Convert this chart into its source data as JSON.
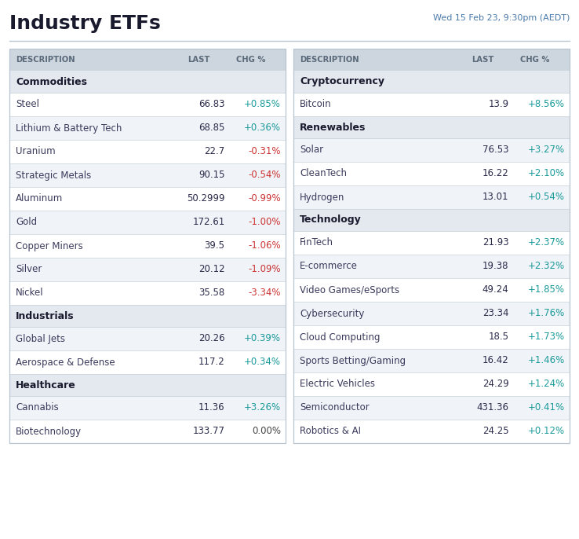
{
  "title": "Industry ETFs",
  "datetime": "Wed 15 Feb 23, 9:30pm (AEDT)",
  "bg_color": "#ffffff",
  "header_bg": "#cdd5de",
  "category_bg": "#e4e9ef",
  "row_bg_odd": "#ffffff",
  "row_bg_even": "#f0f3f7",
  "header_text_color": "#5a6a7a",
  "category_text_color": "#1a1a2e",
  "desc_text_color": "#3a3a5c",
  "last_text_color": "#2a2a4a",
  "positive_color": "#1a9a9a",
  "negative_color": "#cc3333",
  "neutral_color": "#444444",
  "title_color": "#1a1a2e",
  "datetime_color": "#4a7aaa",
  "border_color": "#b8c4cf",
  "separator_color": "#c8d2dc",
  "left_table": {
    "categories": [
      {
        "name": "Commodities",
        "rows": [
          {
            "desc": "Steel",
            "last": "66.83",
            "chg": "+0.85%",
            "positive": true
          },
          {
            "desc": "Lithium & Battery Tech",
            "last": "68.85",
            "chg": "+0.36%",
            "positive": true
          },
          {
            "desc": "Uranium",
            "last": "22.7",
            "chg": "-0.31%",
            "positive": false
          },
          {
            "desc": "Strategic Metals",
            "last": "90.15",
            "chg": "-0.54%",
            "positive": false
          },
          {
            "desc": "Aluminum",
            "last": "50.2999",
            "chg": "-0.99%",
            "positive": false
          },
          {
            "desc": "Gold",
            "last": "172.61",
            "chg": "-1.00%",
            "positive": false
          },
          {
            "desc": "Copper Miners",
            "last": "39.5",
            "chg": "-1.06%",
            "positive": false
          },
          {
            "desc": "Silver",
            "last": "20.12",
            "chg": "-1.09%",
            "positive": false
          },
          {
            "desc": "Nickel",
            "last": "35.58",
            "chg": "-3.34%",
            "positive": false
          }
        ]
      },
      {
        "name": "Industrials",
        "rows": [
          {
            "desc": "Global Jets",
            "last": "20.26",
            "chg": "+0.39%",
            "positive": true
          },
          {
            "desc": "Aerospace & Defense",
            "last": "117.2",
            "chg": "+0.34%",
            "positive": true
          }
        ]
      },
      {
        "name": "Healthcare",
        "rows": [
          {
            "desc": "Cannabis",
            "last": "11.36",
            "chg": "+3.26%",
            "positive": true
          },
          {
            "desc": "Biotechnology",
            "last": "133.77",
            "chg": "0.00%",
            "positive": null
          }
        ]
      }
    ]
  },
  "right_table": {
    "categories": [
      {
        "name": "Cryptocurrency",
        "rows": [
          {
            "desc": "Bitcoin",
            "last": "13.9",
            "chg": "+8.56%",
            "positive": true
          }
        ]
      },
      {
        "name": "Renewables",
        "rows": [
          {
            "desc": "Solar",
            "last": "76.53",
            "chg": "+3.27%",
            "positive": true
          },
          {
            "desc": "CleanTech",
            "last": "16.22",
            "chg": "+2.10%",
            "positive": true
          },
          {
            "desc": "Hydrogen",
            "last": "13.01",
            "chg": "+0.54%",
            "positive": true
          }
        ]
      },
      {
        "name": "Technology",
        "rows": [
          {
            "desc": "FinTech",
            "last": "21.93",
            "chg": "+2.37%",
            "positive": true
          },
          {
            "desc": "E-commerce",
            "last": "19.38",
            "chg": "+2.32%",
            "positive": true
          },
          {
            "desc": "Video Games/eSports",
            "last": "49.24",
            "chg": "+1.85%",
            "positive": true
          },
          {
            "desc": "Cybersecurity",
            "last": "23.34",
            "chg": "+1.76%",
            "positive": true
          },
          {
            "desc": "Cloud Computing",
            "last": "18.5",
            "chg": "+1.73%",
            "positive": true
          },
          {
            "desc": "Sports Betting/Gaming",
            "last": "16.42",
            "chg": "+1.46%",
            "positive": true
          },
          {
            "desc": "Electric Vehicles",
            "last": "24.29",
            "chg": "+1.24%",
            "positive": true
          },
          {
            "desc": "Semiconductor",
            "last": "431.36",
            "chg": "+0.41%",
            "positive": true
          },
          {
            "desc": "Robotics & AI",
            "last": "24.25",
            "chg": "+0.12%",
            "positive": true
          }
        ]
      }
    ]
  }
}
